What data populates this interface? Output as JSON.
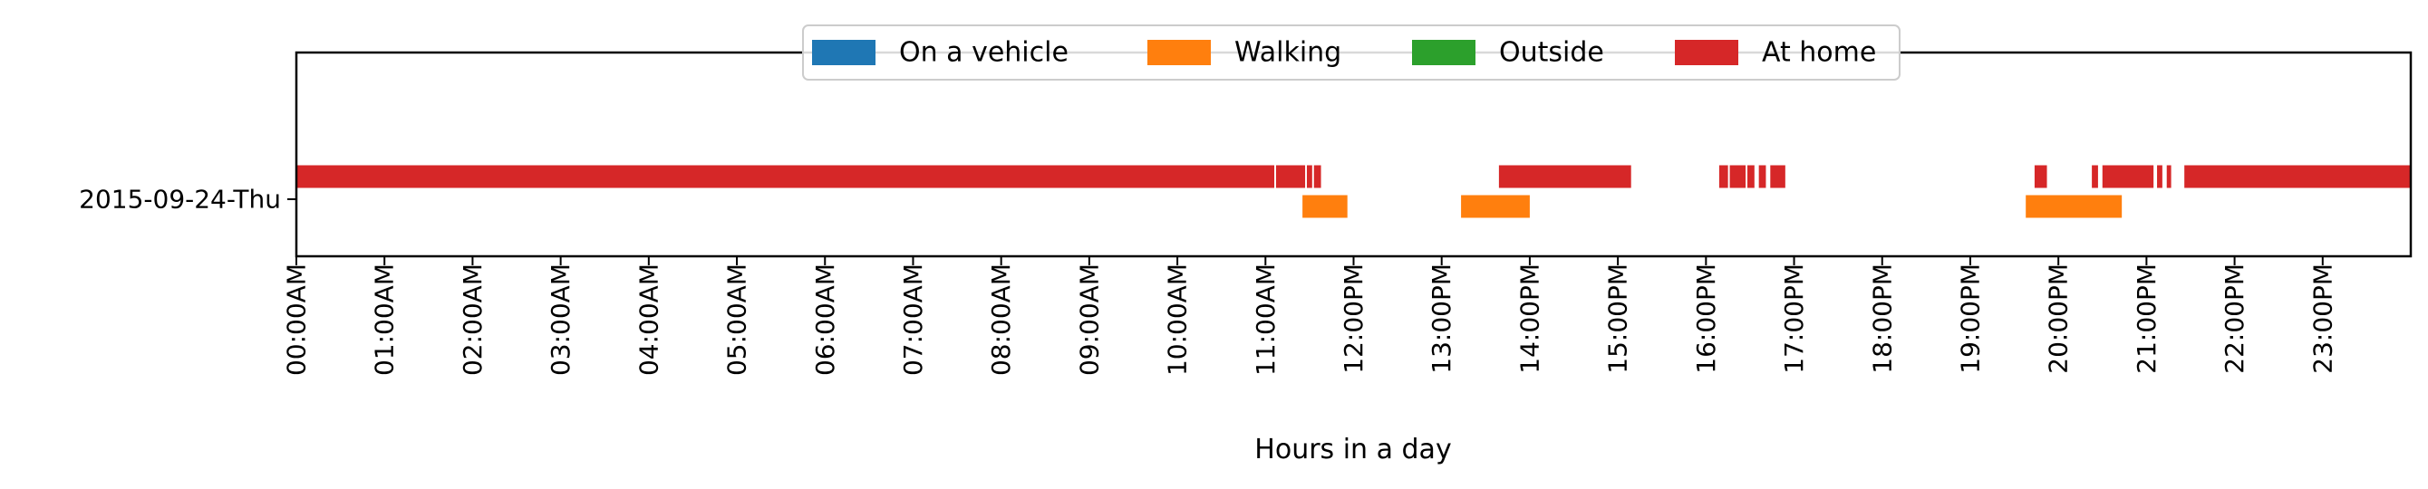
{
  "chart_data": {
    "type": "timeline",
    "xlabel": "Hours in a day",
    "ylabel": "",
    "xlim": [
      0,
      24
    ],
    "x_ticks": [
      {
        "value": 0,
        "label": "00:00AM"
      },
      {
        "value": 1,
        "label": "01:00AM"
      },
      {
        "value": 2,
        "label": "02:00AM"
      },
      {
        "value": 3,
        "label": "03:00AM"
      },
      {
        "value": 4,
        "label": "04:00AM"
      },
      {
        "value": 5,
        "label": "05:00AM"
      },
      {
        "value": 6,
        "label": "06:00AM"
      },
      {
        "value": 7,
        "label": "07:00AM"
      },
      {
        "value": 8,
        "label": "08:00AM"
      },
      {
        "value": 9,
        "label": "09:00AM"
      },
      {
        "value": 10,
        "label": "10:00AM"
      },
      {
        "value": 11,
        "label": "11:00AM"
      },
      {
        "value": 12,
        "label": "12:00PM"
      },
      {
        "value": 13,
        "label": "13:00PM"
      },
      {
        "value": 14,
        "label": "14:00PM"
      },
      {
        "value": 15,
        "label": "15:00PM"
      },
      {
        "value": 16,
        "label": "16:00PM"
      },
      {
        "value": 17,
        "label": "17:00PM"
      },
      {
        "value": 18,
        "label": "18:00PM"
      },
      {
        "value": 19,
        "label": "19:00PM"
      },
      {
        "value": 20,
        "label": "20:00PM"
      },
      {
        "value": 21,
        "label": "21:00PM"
      },
      {
        "value": 22,
        "label": "22:00PM"
      },
      {
        "value": 23,
        "label": "23:00PM"
      }
    ],
    "categories": [
      "2015-09-24-Thu"
    ],
    "legend_position": "upper center",
    "grid": false,
    "series": [
      {
        "name": "On a vehicle",
        "color": "#1f77b4",
        "lane": 0,
        "intervals": []
      },
      {
        "name": "Walking",
        "color": "#ff7f0e",
        "lane": 1,
        "intervals": [
          [
            11.42,
            11.93
          ],
          [
            13.22,
            14.0
          ],
          [
            19.63,
            20.72
          ]
        ]
      },
      {
        "name": "Outside",
        "color": "#2ca02c",
        "lane": 2,
        "intervals": []
      },
      {
        "name": "At home",
        "color": "#d62728",
        "lane": 0,
        "intervals": [
          [
            0.0,
            11.1
          ],
          [
            11.12,
            11.45
          ],
          [
            11.47,
            11.53
          ],
          [
            11.55,
            11.63
          ],
          [
            13.65,
            15.15
          ],
          [
            16.15,
            16.25
          ],
          [
            16.27,
            16.45
          ],
          [
            16.47,
            16.55
          ],
          [
            16.6,
            16.68
          ],
          [
            16.73,
            16.9
          ],
          [
            19.73,
            19.87
          ],
          [
            20.38,
            20.45
          ],
          [
            20.5,
            21.08
          ],
          [
            21.12,
            21.18
          ],
          [
            21.23,
            21.28
          ],
          [
            21.43,
            24.0
          ]
        ]
      }
    ]
  }
}
